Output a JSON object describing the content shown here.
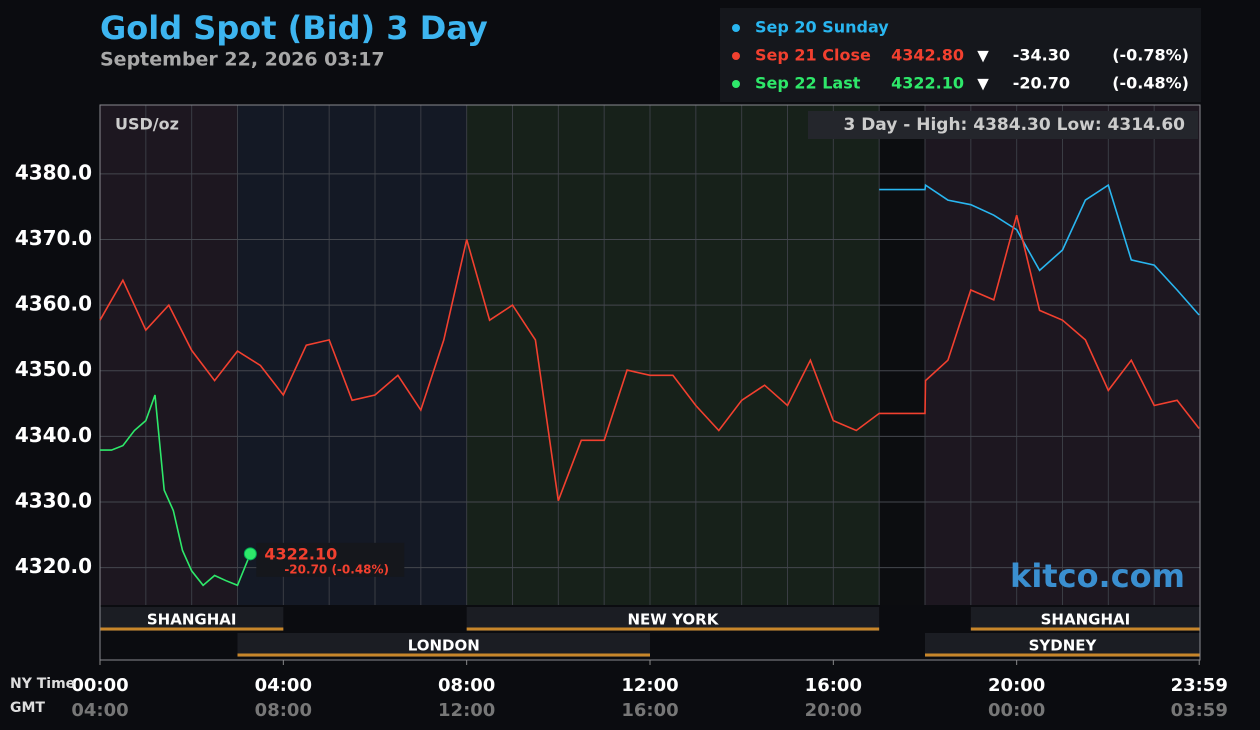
{
  "chart_data": {
    "type": "line",
    "title": "Gold Spot (Bid) 3 Day",
    "subtitle": "September 22, 2026 03:17",
    "unit_label": "USD/oz",
    "range_label": "3 Day - High: 4384.30  Low: 4314.60",
    "watermark": "kitco.com",
    "x_row_labels": [
      "NY Time",
      "GMT"
    ],
    "xlim": [
      0,
      24
    ],
    "xgrid_step": 1,
    "xticks": [
      {
        "value": 0,
        "label": "00:00"
      },
      {
        "value": 4,
        "label": "04:00"
      },
      {
        "value": 8,
        "label": "08:00"
      },
      {
        "value": 12,
        "label": "12:00"
      },
      {
        "value": 16,
        "label": "16:00"
      },
      {
        "value": 20,
        "label": "20:00"
      },
      {
        "value": 23.983,
        "label": "23:59"
      }
    ],
    "xticks_gmt": [
      "04:00",
      "08:00",
      "12:00",
      "16:00",
      "20:00",
      "00:00",
      "03:59"
    ],
    "ylim": [
      4314.3,
      4390.5
    ],
    "yticks": [
      {
        "value": 4320,
        "label": "4320.0"
      },
      {
        "value": 4330,
        "label": "4330.0"
      },
      {
        "value": 4340,
        "label": "4340.0"
      },
      {
        "value": 4350,
        "label": "4350.0"
      },
      {
        "value": 4360,
        "label": "4360.0"
      },
      {
        "value": 4370,
        "label": "4370.0"
      },
      {
        "value": 4380,
        "label": "4380.0"
      }
    ],
    "grid": true,
    "regions": [
      {
        "start": 0,
        "end": 3,
        "color": "#1d1720"
      },
      {
        "start": 3,
        "end": 8,
        "color": "#141925"
      },
      {
        "start": 8,
        "end": 17,
        "color": "#17211a"
      },
      {
        "start": 17,
        "end": 18,
        "color": "#0c0d10"
      },
      {
        "start": 18,
        "end": 24,
        "color": "#1d1720"
      }
    ],
    "sessions": [
      {
        "name": "SHANGHAI",
        "start": 0,
        "end": 4,
        "row": 0
      },
      {
        "name": "NEW YORK",
        "start": 8,
        "end": 17,
        "row": 0
      },
      {
        "name": "SHANGHAI",
        "start": 19,
        "end": 24,
        "row": 0
      },
      {
        "name": "LONDON",
        "start": 3,
        "end": 12,
        "row": 1
      },
      {
        "name": "SYDNEY",
        "start": 18,
        "end": 24,
        "row": 1
      }
    ],
    "series": [
      {
        "name": "Sep 20 Sunday",
        "color": "#29b6f0",
        "x": [
          17,
          17.5,
          18,
          18.01,
          18.5,
          19,
          19.5,
          20,
          20.5,
          21,
          21.5,
          22,
          22.5,
          23,
          23.5,
          23.98
        ],
        "values": [
          4377.6,
          4377.6,
          4377.6,
          4378.3,
          4376,
          4375.3,
          4373.7,
          4371.5,
          4365.3,
          4368.4,
          4376,
          4378.3,
          4366.9,
          4366.1,
          4362.3,
          4358.5
        ]
      },
      {
        "name": "Sep 21 Close",
        "color": "#f2402f",
        "legend": {
          "value": "4342.80",
          "arrow": "▼",
          "change": "-34.30",
          "pct": "(-0.78%)"
        },
        "x": [
          0,
          0.5,
          1,
          1.5,
          2,
          2.5,
          3,
          3.5,
          4,
          4.5,
          5,
          5.5,
          6,
          6.5,
          7,
          7.5,
          8,
          8.5,
          9,
          9.5,
          10,
          10.5,
          11,
          11.5,
          12,
          12.5,
          13,
          13.5,
          14,
          14.5,
          15,
          15.5,
          16,
          16.5,
          17,
          17.5,
          18,
          18.01,
          18.5,
          19,
          19.5,
          20,
          20.5,
          21,
          21.5,
          22,
          22.5,
          23,
          23.5,
          23.98
        ],
        "values": [
          4357.7,
          4363.8,
          4356.2,
          4360,
          4353.1,
          4348.5,
          4353,
          4350.8,
          4346.3,
          4353.9,
          4354.7,
          4345.5,
          4346.3,
          4349.3,
          4344,
          4354.7,
          4370,
          4357.7,
          4360,
          4354.7,
          4330.2,
          4339.4,
          4339.4,
          4350.1,
          4349.3,
          4349.3,
          4344.7,
          4340.9,
          4345.5,
          4347.8,
          4344.7,
          4351.6,
          4342.4,
          4340.9,
          4343.5,
          4343.5,
          4343.5,
          4348.5,
          4351.6,
          4362.3,
          4360.8,
          4373.7,
          4359.2,
          4357.7,
          4354.7,
          4347,
          4351.6,
          4344.7,
          4345.5,
          4341.2
        ]
      },
      {
        "name": "Sep 22 Last",
        "color": "#2ee86a",
        "legend": {
          "value": "4322.10",
          "arrow": "▼",
          "change": "-20.70",
          "pct": "(-0.48%)"
        },
        "x": [
          0,
          0.25,
          0.5,
          0.75,
          1,
          1.2,
          1.4,
          1.6,
          1.8,
          2,
          2.25,
          2.5,
          2.75,
          3,
          3.28
        ],
        "values": [
          4337.9,
          4337.9,
          4338.6,
          4340.9,
          4342.4,
          4346.3,
          4331.8,
          4328.7,
          4322.6,
          4319.5,
          4317.3,
          4318.8,
          4318,
          4317.3,
          4322.1
        ],
        "last_label": "4322.10",
        "last_change": "-20.70 (-0.48%)"
      }
    ]
  }
}
